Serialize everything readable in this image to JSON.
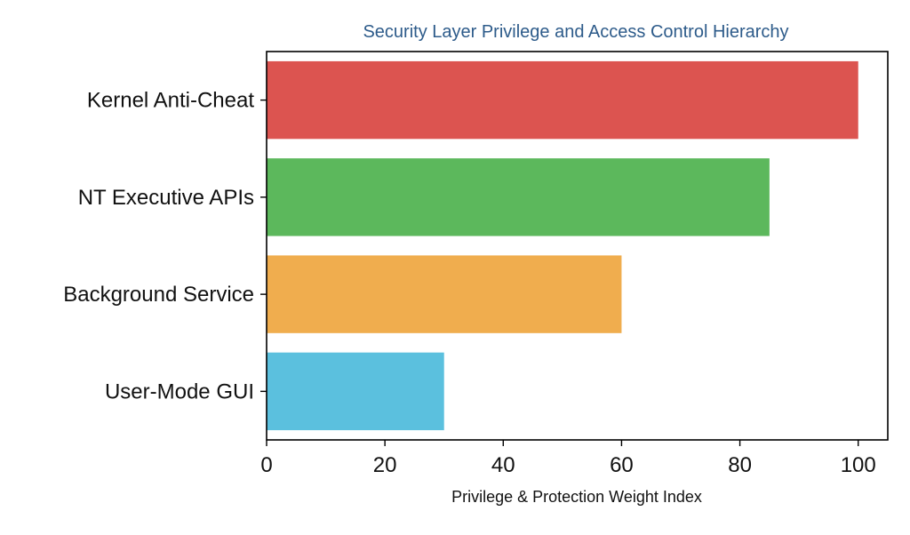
{
  "chart_data": {
    "type": "bar",
    "orientation": "horizontal",
    "title": "Security Layer Privilege and Access Control Hierarchy",
    "xlabel": "Privilege & Protection Weight Index",
    "ylabel": "",
    "categories": [
      "Kernel Anti-Cheat",
      "NT Executive APIs",
      "Background Service",
      "User-Mode GUI"
    ],
    "values": [
      100,
      85,
      60,
      30
    ],
    "colors": [
      "#dc5450",
      "#5cb85c",
      "#f0ad4e",
      "#5bc0de"
    ],
    "xlim": [
      0,
      105
    ],
    "xticks": [
      0,
      20,
      40,
      60,
      80,
      100
    ],
    "grid": false,
    "legend": "none"
  }
}
